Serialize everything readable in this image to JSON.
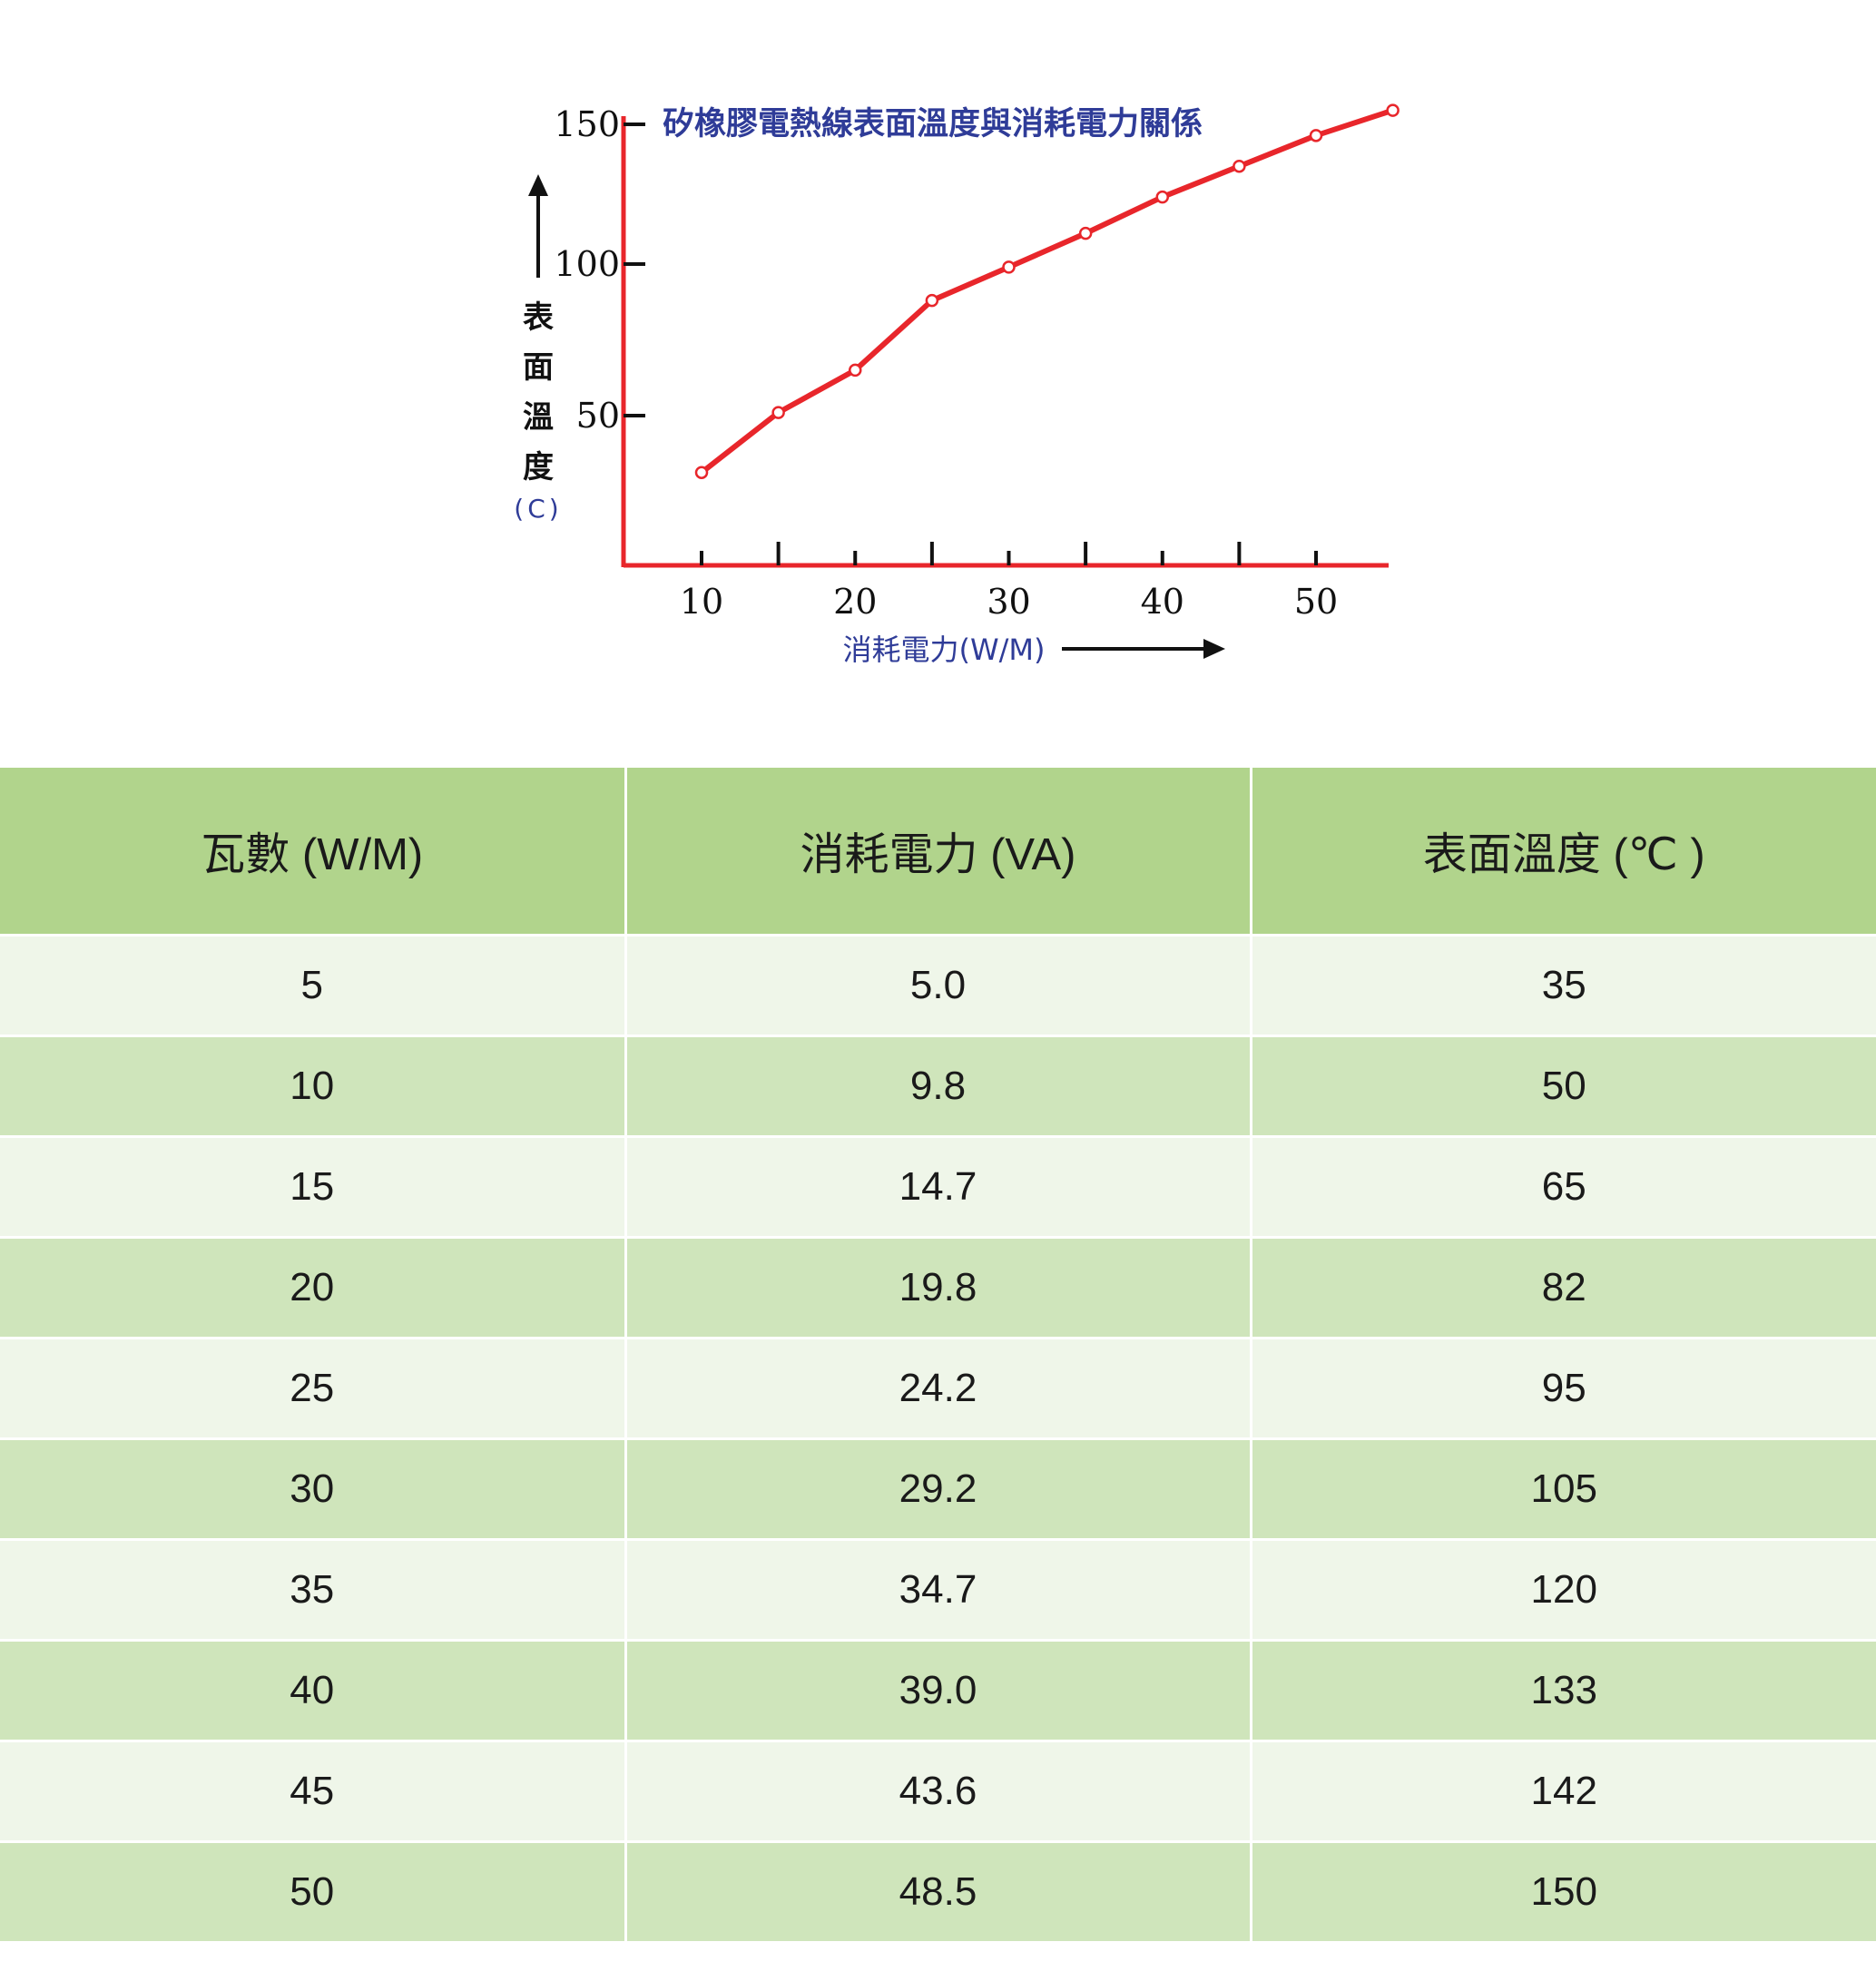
{
  "chart_data": {
    "type": "line",
    "title": "矽橡膠電熱線表面溫度與消耗電力關係",
    "xlabel": "消耗電力(W/M)",
    "ylabel_chars": [
      "表",
      "面",
      "溫",
      "度"
    ],
    "ylabel_unit": "(C)",
    "x_tick_labels": [
      "10",
      "20",
      "30",
      "40",
      "50"
    ],
    "y_tick_labels": [
      "50",
      "100",
      "150"
    ],
    "x_ticks": [
      10,
      15,
      20,
      25,
      30,
      35,
      40,
      45,
      50
    ],
    "y_ticks": [
      50,
      100,
      150
    ],
    "xlim": [
      5,
      55
    ],
    "ylim": [
      0,
      150
    ],
    "series": [
      {
        "x": [
          10,
          15,
          20,
          25,
          30,
          35,
          40,
          45,
          50,
          55
        ],
        "y": [
          31,
          51,
          65,
          88,
          99,
          111,
          124,
          135,
          146,
          155
        ]
      }
    ],
    "colors": {
      "line": "#e8262b",
      "axis": "#e8262b",
      "title": "#2f3c98",
      "tick": "#111111"
    }
  },
  "table": {
    "headers": [
      "瓦數 (W/M)",
      "消耗電力 (VA)",
      "表面溫度 (℃ )"
    ],
    "rows": [
      [
        "5",
        "5.0",
        "35"
      ],
      [
        "10",
        "9.8",
        "50"
      ],
      [
        "15",
        "14.7",
        "65"
      ],
      [
        "20",
        "19.8",
        "82"
      ],
      [
        "25",
        "24.2",
        "95"
      ],
      [
        "30",
        "29.2",
        "105"
      ],
      [
        "35",
        "34.7",
        "120"
      ],
      [
        "40",
        "39.0",
        "133"
      ],
      [
        "45",
        "43.6",
        "142"
      ],
      [
        "50",
        "48.5",
        "150"
      ]
    ],
    "colors": {
      "header": "#b1d48c",
      "row_light": "#eff6e9",
      "row_dark": "#cfe5bb"
    }
  }
}
